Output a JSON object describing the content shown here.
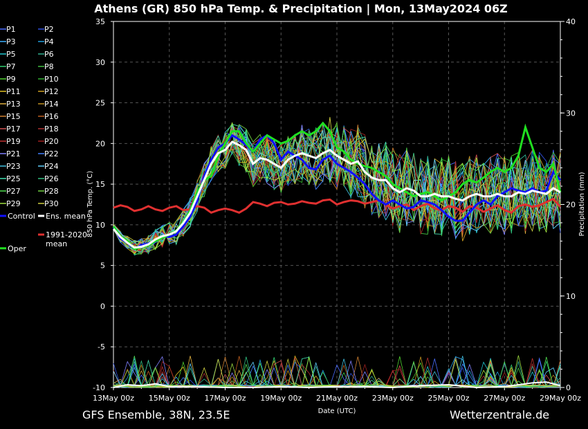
{
  "chart_data": {
    "type": "line",
    "title": "Athens  (GR)  850 hPa Temp. & Precipitation | Mon, 13May2024 06Z",
    "xlabel": "Date (UTC)",
    "ylabel": "850 hPa Temp. (°C)",
    "y2label": "Precipitation (mm)",
    "x_ticks": [
      "13May 00z",
      "15May 00z",
      "17May 00z",
      "19May 00z",
      "21May 00z",
      "23May 00z",
      "25May 00z",
      "27May 00z",
      "29May 00z"
    ],
    "x_range_days": [
      0,
      16
    ],
    "ylim": [
      -10,
      35
    ],
    "y_ticks": [
      -10,
      -5,
      0,
      5,
      10,
      15,
      20,
      25,
      30,
      35
    ],
    "y2lim": [
      0,
      40
    ],
    "y2_ticks": [
      0,
      10,
      20,
      30,
      40
    ],
    "grid": true,
    "legend_position": "left",
    "legend": [
      "P1",
      "P2",
      "P3",
      "P4",
      "P5",
      "P6",
      "P7",
      "P8",
      "P9",
      "P10",
      "P11",
      "P12",
      "P13",
      "P14",
      "P15",
      "P16",
      "P17",
      "P18",
      "P19",
      "P20",
      "P21",
      "P22",
      "P23",
      "P24",
      "P25",
      "P26",
      "P27",
      "P28",
      "P29",
      "P30",
      "Control",
      "Ens. mean",
      "1991-2020 mean",
      "Oper"
    ],
    "member_colors": [
      "#4a6cff",
      "#3050e0",
      "#3ab0ff",
      "#20a0e0",
      "#20c8d0",
      "#30b090",
      "#30d070",
      "#40c040",
      "#50d030",
      "#30b030",
      "#e0c020",
      "#d0a020",
      "#e0b040",
      "#c09020",
      "#d08030",
      "#c06020",
      "#d05050",
      "#b03030",
      "#c03030",
      "#a02020",
      "#8080ff",
      "#4080ff",
      "#40c0e0",
      "#60d0ff",
      "#40e0b0",
      "#30c080",
      "#50e050",
      "#70d040",
      "#a0e040",
      "#d0d040"
    ],
    "series": [
      {
        "name": "Ens. mean",
        "color": "#ffffff",
        "x": [
          0,
          0.25,
          0.5,
          0.75,
          1,
          1.25,
          1.5,
          1.75,
          2,
          2.25,
          2.5,
          2.75,
          3,
          3.25,
          3.5,
          3.75,
          4,
          4.25,
          4.5,
          4.75,
          5,
          5.25,
          5.5,
          5.75,
          6,
          6.25,
          6.5,
          6.75,
          7,
          7.25,
          7.5,
          7.75,
          8,
          8.25,
          8.5,
          8.75,
          9,
          9.25,
          9.5,
          9.75,
          10,
          10.25,
          10.5,
          10.75,
          11,
          11.25,
          11.5,
          11.75,
          12,
          12.25,
          12.5,
          12.75,
          13,
          13.25,
          13.5,
          13.75,
          14,
          14.25,
          14.5,
          14.75,
          15,
          15.25,
          15.5,
          15.75,
          16
        ],
        "y": [
          9.5,
          8.5,
          7.8,
          7.2,
          7.3,
          7.6,
          8.2,
          8.6,
          8.8,
          9.2,
          10.2,
          11.5,
          13.5,
          15.5,
          17.5,
          18.8,
          19.2,
          20.2,
          19.8,
          19.2,
          17.5,
          18.2,
          18.0,
          17.5,
          17.0,
          18.0,
          18.5,
          18.8,
          18.5,
          18.2,
          18.8,
          19.2,
          18.5,
          18.0,
          17.5,
          17.8,
          16.5,
          15.8,
          15.5,
          15.5,
          14.5,
          14.0,
          14.5,
          14.2,
          13.5,
          13.5,
          13.8,
          13.5,
          13.5,
          13.2,
          13.0,
          13.5,
          13.8,
          13.5,
          13.5,
          13.8,
          13.5,
          13.5,
          14.0,
          13.8,
          14.2,
          14.0,
          13.8,
          14.5,
          14.0
        ]
      },
      {
        "name": "Control",
        "color": "#1010ff",
        "x": [
          0,
          0.25,
          0.5,
          0.75,
          1,
          1.25,
          1.5,
          1.75,
          2,
          2.25,
          2.5,
          2.75,
          3,
          3.25,
          3.5,
          3.75,
          4,
          4.25,
          4.5,
          4.75,
          5,
          5.25,
          5.5,
          5.75,
          6,
          6.25,
          6.5,
          6.75,
          7,
          7.25,
          7.5,
          7.75,
          8,
          8.25,
          8.5,
          8.75,
          9,
          9.25,
          9.5,
          9.75,
          10,
          10.25,
          10.5,
          10.75,
          11,
          11.25,
          11.5,
          11.75,
          12,
          12.25,
          12.5,
          12.75,
          13,
          13.25,
          13.5,
          13.75,
          14,
          14.25,
          14.5,
          14.75,
          15,
          15.25,
          15.5,
          15.75,
          16
        ],
        "y": [
          9.7,
          8.3,
          7.8,
          7.0,
          7.5,
          7.7,
          8.0,
          8.6,
          8.5,
          8.8,
          9.8,
          11.0,
          13.0,
          16.0,
          18.0,
          19.5,
          20.0,
          21.0,
          20.5,
          19.8,
          19.0,
          20.5,
          21.0,
          20.0,
          18.0,
          19.0,
          18.5,
          18.0,
          17.0,
          16.8,
          18.0,
          18.5,
          17.5,
          17.0,
          16.5,
          15.8,
          15.0,
          13.8,
          13.0,
          12.5,
          13.0,
          12.5,
          12.0,
          12.2,
          13.0,
          12.8,
          12.5,
          11.8,
          11.0,
          10.5,
          10.5,
          11.5,
          12.5,
          13.0,
          12.5,
          13.5,
          14.0,
          14.5,
          14.2,
          14.0,
          14.5,
          14.0,
          14.2,
          16.5,
          15.5
        ]
      },
      {
        "name": "Oper",
        "color": "#20e020",
        "x": [
          0,
          0.25,
          0.5,
          0.75,
          1,
          1.25,
          1.5,
          1.75,
          2,
          2.25,
          2.5,
          2.75,
          3,
          3.25,
          3.5,
          3.75,
          4,
          4.25,
          4.5,
          4.75,
          5,
          5.25,
          5.5,
          5.75,
          6,
          6.25,
          6.5,
          6.75,
          7,
          7.25,
          7.5,
          7.75,
          8,
          8.25,
          8.5,
          8.75,
          9,
          9.25,
          9.5,
          9.75,
          10,
          10.25,
          10.5,
          10.75,
          11,
          11.25,
          11.5,
          11.75,
          12,
          12.25,
          12.5,
          12.75,
          13,
          13.25,
          13.5,
          13.75,
          14,
          14.25,
          14.5,
          14.75,
          15,
          15.25,
          15.5,
          15.75,
          16
        ],
        "y": [
          9.8,
          8.6,
          8.0,
          7.0,
          7.3,
          7.5,
          8.0,
          8.4,
          8.8,
          9.3,
          10.3,
          11.8,
          14.0,
          15.5,
          16.0,
          18.5,
          20.0,
          21.5,
          21.5,
          20.0,
          19.0,
          20.0,
          21.0,
          20.5,
          20.0,
          20.3,
          21.0,
          21.5,
          21.0,
          21.5,
          22.5,
          21.5,
          19.5,
          19.0,
          18.0,
          17.5,
          17.2,
          17.0,
          16.5,
          16.0,
          15.0,
          14.5,
          14.0,
          13.5,
          13.8,
          14.0,
          13.5,
          13.0,
          13.5,
          14.0,
          15.0,
          15.5,
          15.2,
          15.8,
          16.5,
          17.0,
          16.5,
          17.0,
          18.5,
          22.0,
          19.5,
          17.0,
          16.5,
          17.5,
          14.0
        ]
      },
      {
        "name": "1991-2020 mean",
        "color": "#e03030",
        "x": [
          0,
          0.25,
          0.5,
          0.75,
          1,
          1.25,
          1.5,
          1.75,
          2,
          2.25,
          2.5,
          2.75,
          3,
          3.25,
          3.5,
          3.75,
          4,
          4.25,
          4.5,
          4.75,
          5,
          5.25,
          5.5,
          5.75,
          6,
          6.25,
          6.5,
          6.75,
          7,
          7.25,
          7.5,
          7.75,
          8,
          8.25,
          8.5,
          8.75,
          9,
          9.25,
          9.5,
          9.75,
          10,
          10.25,
          10.5,
          10.75,
          11,
          11.25,
          11.5,
          11.75,
          12,
          12.25,
          12.5,
          12.75,
          13,
          13.25,
          13.5,
          13.75,
          14,
          14.25,
          14.5,
          14.75,
          15,
          15.25,
          15.5,
          15.75,
          16
        ],
        "y": [
          12.1,
          12.4,
          12.2,
          11.7,
          11.9,
          12.3,
          11.9,
          11.7,
          12.1,
          12.3,
          11.8,
          11.9,
          12.3,
          12.1,
          11.5,
          11.8,
          12.0,
          11.8,
          11.5,
          12.0,
          12.8,
          12.6,
          12.3,
          12.7,
          12.8,
          12.5,
          12.6,
          12.9,
          12.7,
          12.6,
          13.0,
          13.1,
          12.5,
          12.8,
          13.0,
          12.9,
          12.6,
          12.8,
          13.0,
          12.5,
          12.0,
          12.3,
          12.5,
          11.8,
          12.3,
          12.6,
          12.0,
          11.8,
          12.3,
          12.1,
          11.6,
          12.3,
          12.1,
          11.6,
          12.0,
          12.4,
          11.8,
          11.5,
          12.3,
          12.5,
          12.2,
          12.4,
          12.8,
          13.2,
          12.2
        ]
      }
    ],
    "precip_total_mm": [
      {
        "x": [
          0,
          0.5,
          1,
          1.5,
          2,
          3,
          4,
          5,
          6,
          7,
          8,
          9,
          10,
          11,
          12,
          13,
          14,
          15,
          15.5,
          16
        ],
        "y": [
          0,
          0.3,
          0.2,
          0.4,
          0.1,
          0.1,
          0,
          0,
          0.1,
          0,
          0.1,
          0.1,
          0,
          0.2,
          0.3,
          0,
          0.1,
          0.5,
          0.6,
          0.2
        ]
      }
    ]
  },
  "footer": {
    "left": "GFS Ensemble, 38N, 23.5E",
    "right": "Wetterzentrale.de"
  }
}
